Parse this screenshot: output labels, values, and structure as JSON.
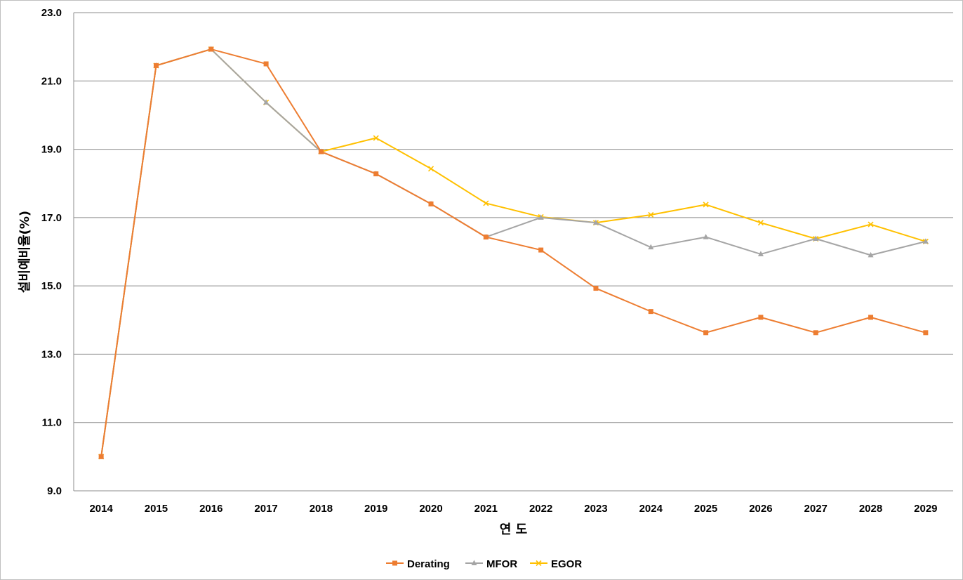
{
  "chart_data": {
    "type": "line",
    "title": "",
    "xlabel": "연 도",
    "ylabel": "설비예비율(%)",
    "ylim": [
      9.0,
      23.0
    ],
    "yticks": [
      "9.0",
      "11.0",
      "13.0",
      "15.0",
      "17.0",
      "19.0",
      "21.0",
      "23.0"
    ],
    "categories": [
      "2014",
      "2015",
      "2016",
      "2017",
      "2018",
      "2019",
      "2020",
      "2021",
      "2022",
      "2023",
      "2024",
      "2025",
      "2026",
      "2027",
      "2028",
      "2029"
    ],
    "grid": true,
    "legend_position": "bottom",
    "series": [
      {
        "name": "Derating",
        "color": "#ED7D31",
        "marker": "square",
        "values": [
          10.0,
          21.45,
          21.93,
          21.5,
          18.93,
          18.28,
          17.4,
          16.43,
          16.05,
          14.93,
          14.25,
          13.63,
          14.08,
          13.63,
          14.08,
          13.63
        ]
      },
      {
        "name": "MFOR",
        "color": "#A5A5A5",
        "marker": "triangle",
        "values": [
          10.0,
          21.45,
          21.93,
          20.37,
          18.93,
          18.28,
          17.4,
          16.43,
          17.0,
          16.85,
          16.13,
          16.43,
          15.93,
          16.38,
          15.9,
          16.3
        ]
      },
      {
        "name": "EGOR",
        "color": "#FFC000",
        "marker": "x",
        "values": [
          10.0,
          21.45,
          21.93,
          20.37,
          18.93,
          19.33,
          18.43,
          17.42,
          17.02,
          16.85,
          17.08,
          17.38,
          16.85,
          16.38,
          16.8,
          16.3
        ]
      }
    ]
  }
}
